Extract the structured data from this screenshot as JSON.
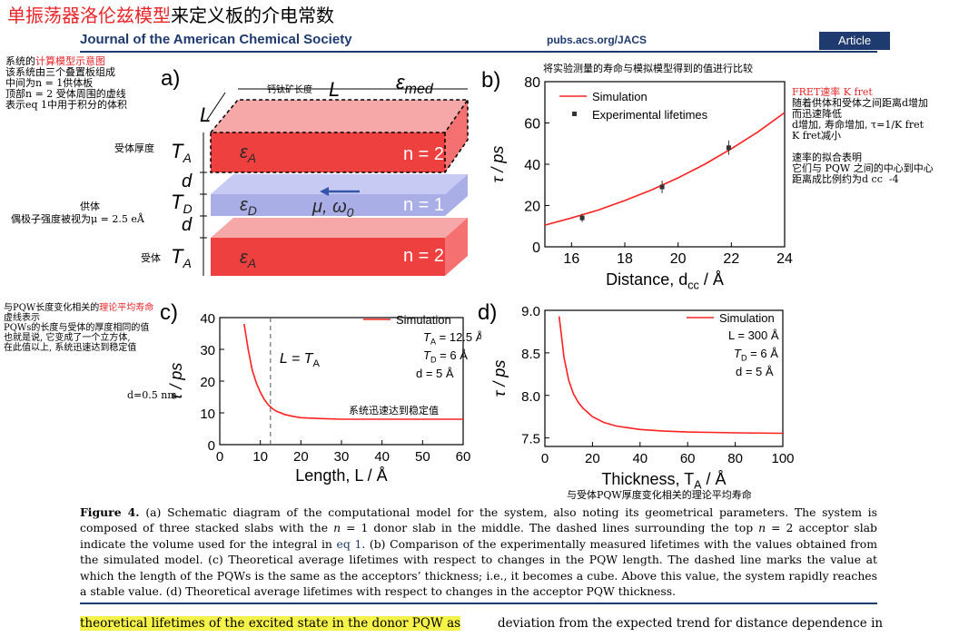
{
  "header": {
    "title_red": "单振荡器洛伦兹模型",
    "title_rest": "来定义板的介电常数",
    "journal": "Journal of the American Chemical Society",
    "url": "pubs.acs.org/JACS",
    "article_badge": "Article"
  },
  "notes": {
    "a_left_1": "系统的",
    "a_left_1_red": "计算模型示意图",
    "a_left_rest": "该系统由三个叠置板组成\n中间为n = 1供体板\n顶部n = 2 受体周围的虚线\n表示eq 1中用于积分的体积",
    "acceptor_thickness": "受体厚度",
    "perovskite_length": "钙钛矿长度",
    "donor": "供体",
    "dipole": "偶极子强度被视为μ = 2.5 eÅ",
    "acceptor": "受体",
    "b_top": "将实验测量的寿命与模拟模型得到的值进行比较",
    "b_right_red": "FRET速率 K fret",
    "b_right_1": "随着供体和受体之间距离d增加\n而迅速降低\nd增加, 寿命增加, τ=1/K fret\nK fret减小",
    "b_right_2": "速率的拟合表明\n它们与 PQW 之间的中心到中心\n距离成比例约为d cc  -4",
    "c_left_1": "与PQW长度变化相关的",
    "c_left_1_red": "理论平均寿命",
    "c_left_rest": "虚线表示\nPQWs的长度与受体的厚度相同的值\n也就是说, 它变成了一个立方体,\n在此值以上, 系统迅速达到稳定值",
    "c_d": "d=0.5 nm",
    "c_stable": "系统迅速达到稳定值",
    "d_bottom": "与受体PQW厚度变化相关的理论平均寿命"
  },
  "panel_a": {
    "letter": "a)",
    "L_top": "L",
    "L_side": "L",
    "eps_med": "ε",
    "eps_med_sub": "med",
    "TA_top": "T",
    "TA_top_sub": "A",
    "d1": "d",
    "TD": "T",
    "TD_sub": "D",
    "d2": "d",
    "TA_bot": "T",
    "TA_bot_sub": "A",
    "epsA_top": "ε",
    "epsA_top_sub": "A",
    "epsD": "ε",
    "epsD_sub": "D",
    "mu_omega": "μ, ω",
    "mu_omega_sub": "0",
    "epsA_bot": "ε",
    "epsA_bot_sub": "A",
    "n_top": "n = 2",
    "n_mid": "n = 1",
    "n_bot": "n = 2"
  },
  "panel_b_letter": "b)",
  "panel_c_letter": "c)",
  "panel_d_letter": "d)",
  "chart_data": [
    {
      "id": "b",
      "type": "line",
      "xlabel": "Distance, d",
      "xlabel_sub": "cc",
      "xlabel_unit": " / Å",
      "ylabel": "τ / ps",
      "xlim": [
        15,
        24
      ],
      "ylim": [
        0,
        80
      ],
      "xticks": [
        16,
        18,
        20,
        22,
        24
      ],
      "yticks": [
        0,
        20,
        40,
        60,
        80
      ],
      "legend": "top-left",
      "series": [
        {
          "name": "Simulation",
          "color": "#ff2020",
          "x": [
            15,
            16,
            17,
            18,
            19,
            20,
            21,
            22,
            23,
            24
          ],
          "y": [
            10.5,
            14.0,
            17.8,
            22.4,
            27.5,
            33.4,
            40.0,
            47.5,
            55.7,
            65.0
          ]
        },
        {
          "name": "Experimental lifetimes",
          "color": "#333333",
          "x": [
            16.4,
            19.4,
            21.9
          ],
          "y": [
            14,
            29,
            48
          ],
          "err": [
            2,
            3,
            3.5
          ]
        }
      ]
    },
    {
      "id": "c",
      "type": "line",
      "xlabel": "Length, L / Å",
      "ylabel": "τ / ps",
      "xlim": [
        0,
        60
      ],
      "ylim": [
        0,
        40
      ],
      "xticks": [
        0,
        10,
        20,
        30,
        40,
        50,
        60
      ],
      "yticks": [
        0,
        10,
        20,
        30,
        40
      ],
      "legend": "top-right",
      "params": [
        "T",
        "A",
        " = 12.5 Å",
        "T",
        "D",
        " = 6 Å",
        "d = 5 Å"
      ],
      "vline": {
        "x": 12.5,
        "label": "L = T",
        "label_sub": "A"
      },
      "series": [
        {
          "name": "Simulation",
          "color": "#ff2020",
          "x": [
            6,
            7,
            8,
            9,
            10,
            11,
            12,
            13,
            14,
            16,
            18,
            20,
            25,
            30,
            40,
            50,
            60
          ],
          "y": [
            38,
            30,
            23.5,
            19.5,
            16.5,
            14.2,
            12.5,
            11.3,
            10.5,
            9.5,
            8.9,
            8.5,
            8.2,
            8.0,
            8.0,
            8.0,
            8.0
          ]
        }
      ]
    },
    {
      "id": "d",
      "type": "line",
      "xlabel": "Thickness, T",
      "xlabel_sub": "A",
      "xlabel_unit": " / Å",
      "ylabel": "τ / ps",
      "xlim": [
        0,
        100
      ],
      "ylim": [
        7.4,
        9.0
      ],
      "xticks": [
        0,
        20,
        40,
        60,
        80,
        100
      ],
      "yticks": [
        7.5,
        8.0,
        8.5,
        9.0
      ],
      "legend": "top-right",
      "params": [
        "L = 300 Å",
        "T",
        "D",
        " = 6 Å",
        "d = 5 Å"
      ],
      "series": [
        {
          "name": "Simulation",
          "color": "#ff2020",
          "x": [
            6,
            7,
            8,
            10,
            12,
            14,
            16,
            18,
            20,
            25,
            30,
            35,
            40,
            50,
            60,
            70,
            80,
            100
          ],
          "y": [
            8.93,
            8.7,
            8.45,
            8.18,
            8.02,
            7.92,
            7.85,
            7.8,
            7.75,
            7.68,
            7.64,
            7.62,
            7.6,
            7.58,
            7.57,
            7.565,
            7.56,
            7.555
          ]
        }
      ]
    }
  ],
  "caption": {
    "fig": "Figure 4.",
    "t1": " (a) Schematic diagram of the computational model for the system, also noting its geometrical parameters. The system is composed of three stacked slabs with the ",
    "n1": "n",
    "t2": " = 1 donor slab in the middle. The dashed lines surrounding the top ",
    "n2": "n",
    "t3": " = 2 acceptor slab indicate the volume used for the integral in ",
    "eq": "eq 1",
    "t4": ". (b) Comparison of the experimentally measured lifetimes with the values obtained from the simulated model. (c) Theoretical average lifetimes with respect to changes in the PQW length. The dashed line marks the value at which the length of the PQWs is the same as the acceptors’ thickness; i.e., it becomes a cube. Above this value, the system rapidly reaches a stable value. (d) Theoretical average lifetimes with respect to changes in the acceptor PQW thickness."
  },
  "body": {
    "left": "theoretical lifetimes of the excited state in the donor PQW as",
    "right": "deviation from the expected trend for distance dependence in"
  }
}
